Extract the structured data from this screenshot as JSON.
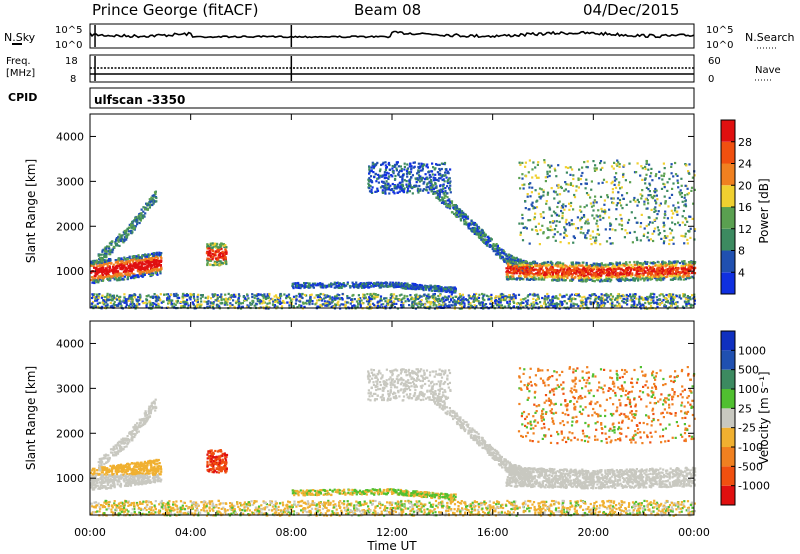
{
  "header": {
    "station": "Prince George (fitACF)",
    "beam": "Beam 08",
    "date": "04/Dec/2015"
  },
  "strips": {
    "nsky_label": "N.Sky",
    "nsearch_label": "N.Search",
    "freq_label_line1": "Freq.",
    "freq_label_line2": "[MHz]",
    "nave_label": "Nave",
    "cpid_label": "CPID",
    "cpid_value": "ulfscan -3350",
    "nsky_ticks": [
      "10^5",
      "10^0"
    ],
    "nsearch_ticks": [
      "10^5",
      "10^0"
    ],
    "freq_ticks": [
      "18",
      "8"
    ],
    "nave_ticks": [
      "60",
      "0"
    ]
  },
  "colors": {
    "power_scale": [
      "#1030e0",
      "#2050b0",
      "#3c8a60",
      "#5aa050",
      "#f0d030",
      "#f08020",
      "#f05010",
      "#e01010"
    ],
    "velocity_scale": [
      "#e01010",
      "#f05010",
      "#f08020",
      "#f0b030",
      "#c8c8c0",
      "#50c030",
      "#3c8a60",
      "#2050b0",
      "#1030c0"
    ],
    "noise_line": "#000000"
  },
  "chart_data": [
    {
      "type": "heatmap",
      "title": "Power",
      "xlabel": "Time UT",
      "ylabel": "Slant Range [km]",
      "xlim_hours": [
        0,
        24
      ],
      "ylim_km": [
        180,
        4500
      ],
      "x_tick_labels": [
        "00:00",
        "04:00",
        "08:00",
        "12:00",
        "16:00",
        "20:00",
        "00:00"
      ],
      "y_tick_labels": [
        "1000",
        "2000",
        "3000",
        "4000"
      ],
      "colorbar": {
        "label": "Power [dB]",
        "tick_labels": [
          "4",
          "8",
          "12",
          "16",
          "20",
          "24",
          "28"
        ]
      },
      "echo_regions": [
        {
          "t0": 0.0,
          "t1": 2.8,
          "r0": 400,
          "r1": 2700,
          "level": "high near 1000 km"
        },
        {
          "t0": 4.5,
          "t1": 5.5,
          "r0": 1100,
          "r1": 1700,
          "level": "high"
        },
        {
          "t0": 11.0,
          "t1": 14.5,
          "r0": 2700,
          "r1": 3500,
          "level": "low"
        },
        {
          "t0": 14.0,
          "t1": 17.0,
          "r0": 800,
          "r1": 2700,
          "level": "descending band"
        },
        {
          "t0": 16.5,
          "t1": 24.0,
          "r0": 600,
          "r1": 1400,
          "level": "high near 1000 km"
        },
        {
          "t0": 16.5,
          "t1": 24.0,
          "r0": 1500,
          "r1": 3600,
          "level": "moderate"
        },
        {
          "t0": 0.0,
          "t1": 24.0,
          "r0": 180,
          "r1": 600,
          "level": "ground scatter"
        }
      ]
    },
    {
      "type": "heatmap",
      "title": "Velocity",
      "xlabel": "Time UT",
      "ylabel": "Slant Range [km]",
      "xlim_hours": [
        0,
        24
      ],
      "ylim_km": [
        180,
        4500
      ],
      "x_tick_labels": [
        "00:00",
        "04:00",
        "08:00",
        "12:00",
        "16:00",
        "20:00",
        "00:00"
      ],
      "y_tick_labels": [
        "1000",
        "2000",
        "3000",
        "4000"
      ],
      "colorbar": {
        "label": "Velocity [m s⁻¹]",
        "tick_labels": [
          "1000",
          "500",
          "100",
          "25",
          "-25",
          "-100",
          "-500",
          "-1000"
        ]
      }
    }
  ]
}
